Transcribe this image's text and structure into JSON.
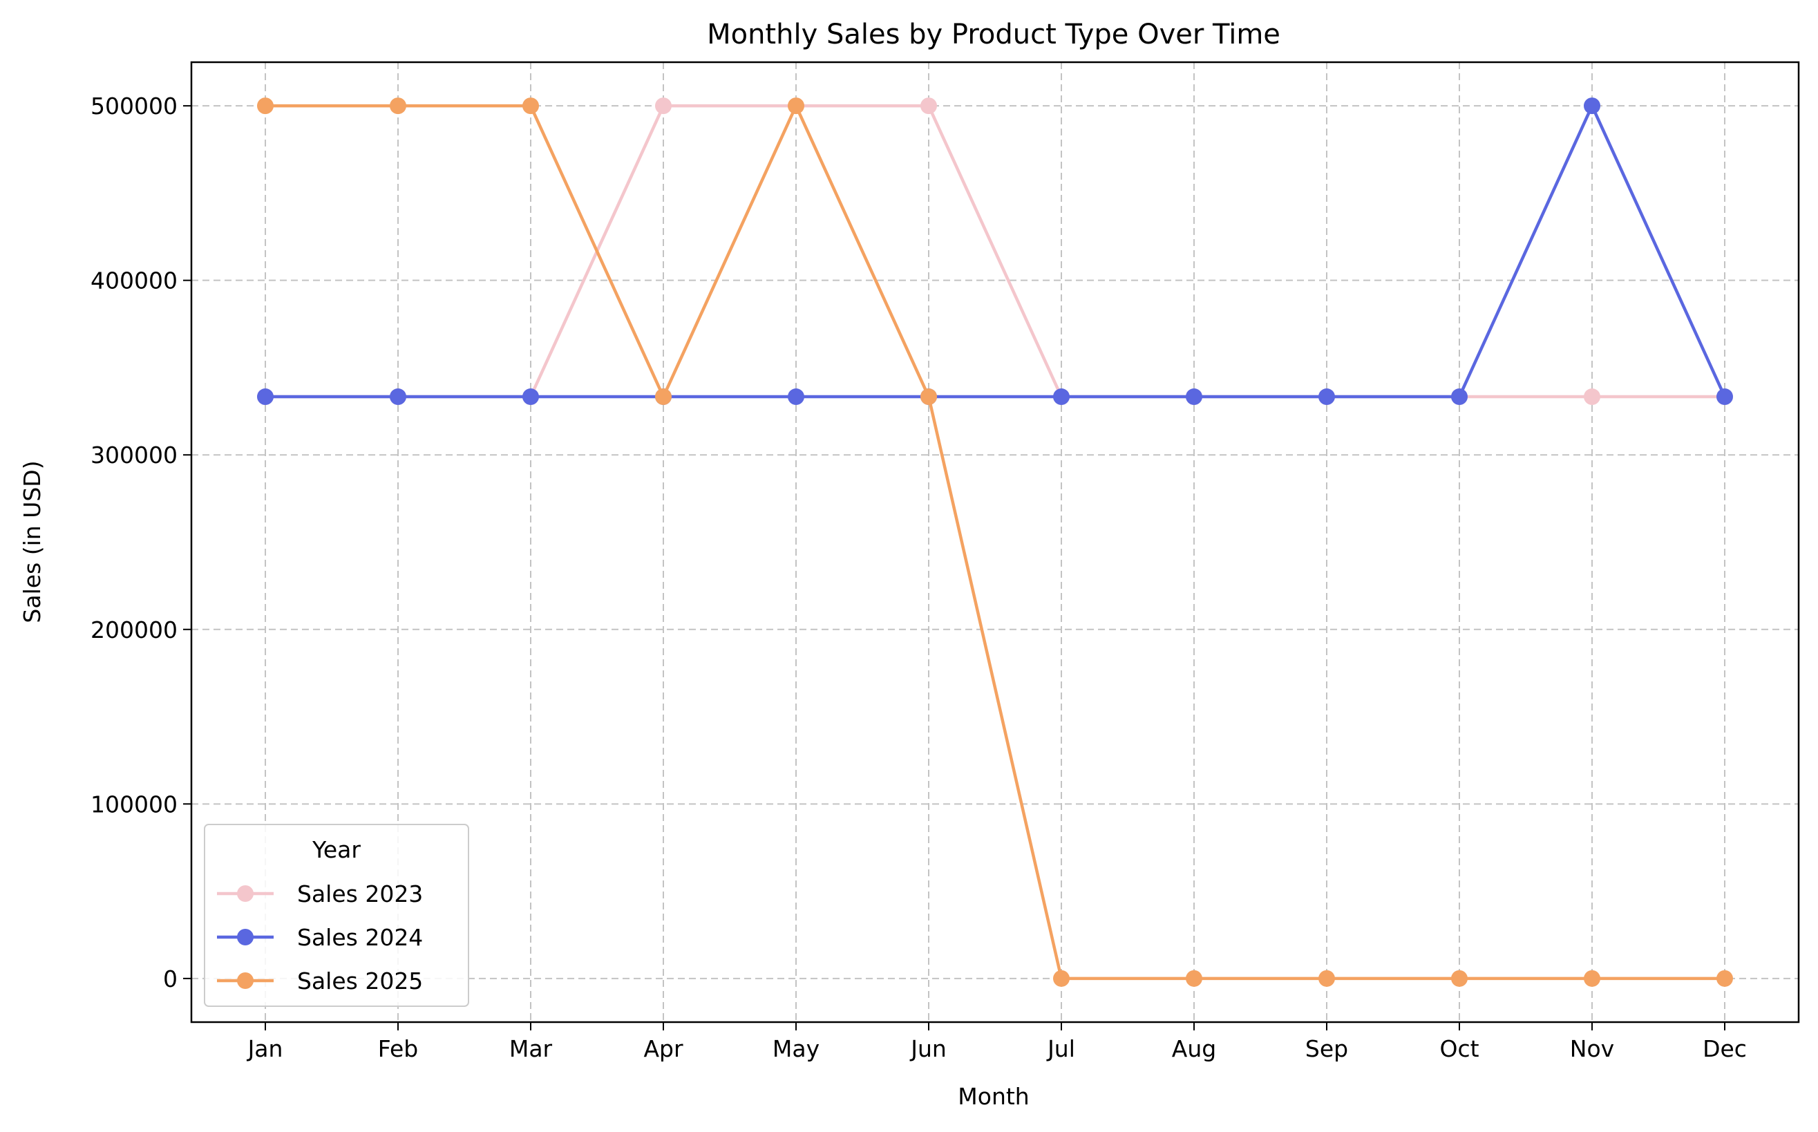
{
  "chart_data": {
    "type": "line",
    "title": "Monthly Sales by Product Type Over Time",
    "xlabel": "Month",
    "ylabel": "Sales (in USD)",
    "categories": [
      "Jan",
      "Feb",
      "Mar",
      "Apr",
      "May",
      "Jun",
      "Jul",
      "Aug",
      "Sep",
      "Oct",
      "Nov",
      "Dec"
    ],
    "ylim": [
      -25000,
      525000
    ],
    "yticks": [
      0,
      100000,
      200000,
      300000,
      400000,
      500000
    ],
    "grid": true,
    "legend": {
      "title": "Year",
      "placement": "lower-left"
    },
    "series": [
      {
        "name": "Sales 2023",
        "color": "#f4c6cc",
        "values": [
          333333,
          333333,
          333333,
          500000,
          500000,
          500000,
          333333,
          333333,
          333333,
          333333,
          333333,
          333333
        ]
      },
      {
        "name": "Sales 2024",
        "color": "#5a67e0",
        "values": [
          333333,
          333333,
          333333,
          333333,
          333333,
          333333,
          333333,
          333333,
          333333,
          333333,
          500000,
          333333
        ]
      },
      {
        "name": "Sales 2025",
        "color": "#f4a261",
        "values": [
          500000,
          500000,
          500000,
          333333,
          500000,
          333333,
          0,
          0,
          0,
          0,
          0,
          0
        ]
      }
    ]
  }
}
